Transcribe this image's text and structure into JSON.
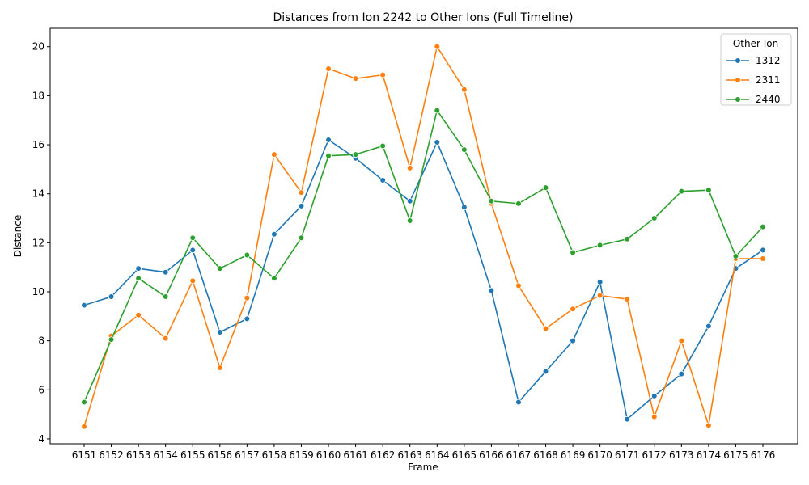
{
  "chart_data": {
    "type": "line",
    "title": "Distances from Ion 2242 to Other Ions (Full Timeline)",
    "xlabel": "Frame",
    "ylabel": "Distance",
    "categories": [
      "6151",
      "6152",
      "6153",
      "6154",
      "6155",
      "6156",
      "6157",
      "6158",
      "6159",
      "6160",
      "6161",
      "6162",
      "6163",
      "6164",
      "6165",
      "6166",
      "6167",
      "6168",
      "6169",
      "6170",
      "6171",
      "6172",
      "6173",
      "6174",
      "6175",
      "6176"
    ],
    "ylim": [
      3.8,
      20.75
    ],
    "yticks": [
      4,
      6,
      8,
      10,
      12,
      14,
      16,
      18,
      20
    ],
    "grid": false,
    "legend": {
      "title": "Other Ion",
      "placement": "top-right"
    },
    "series": [
      {
        "name": "1312",
        "color": "#1f77b4",
        "values": [
          9.45,
          9.8,
          10.95,
          10.8,
          11.7,
          8.35,
          8.9,
          12.35,
          13.5,
          16.2,
          15.45,
          14.55,
          13.7,
          16.1,
          13.45,
          10.05,
          5.5,
          6.75,
          8.0,
          10.4,
          4.8,
          5.75,
          6.65,
          8.6,
          10.95,
          11.7
        ]
      },
      {
        "name": "2311",
        "color": "#ff7f0e",
        "values": [
          4.5,
          8.2,
          9.05,
          8.1,
          10.45,
          6.9,
          9.75,
          15.6,
          14.05,
          19.1,
          18.7,
          18.85,
          15.05,
          20.0,
          18.25,
          13.6,
          10.25,
          8.5,
          9.3,
          9.85,
          9.7,
          4.9,
          8.0,
          4.55,
          11.35,
          11.35
        ]
      },
      {
        "name": "2440",
        "color": "#2ca02c",
        "values": [
          5.5,
          8.05,
          10.55,
          9.8,
          12.2,
          10.95,
          11.5,
          10.55,
          12.2,
          15.55,
          15.6,
          15.95,
          12.9,
          17.4,
          15.8,
          13.7,
          13.6,
          14.25,
          11.6,
          11.9,
          12.15,
          13.0,
          14.1,
          14.15,
          11.45,
          12.65
        ]
      }
    ]
  }
}
